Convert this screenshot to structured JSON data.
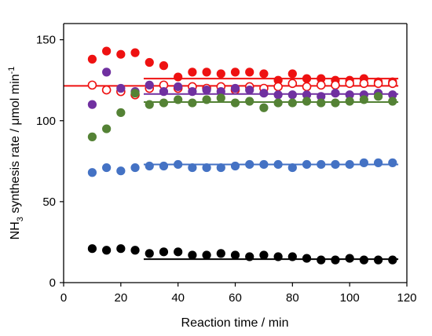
{
  "chart_data": {
    "type": "scatter",
    "xlabel": "Reaction time / min",
    "ylabel_parts": {
      "pre": "NH",
      "sub": "3",
      "mid": " synthesis rate / μmol min",
      "sup": "-1"
    },
    "xlim": [
      0,
      120
    ],
    "ylim": [
      0,
      160
    ],
    "xticks": [
      0,
      20,
      40,
      60,
      80,
      100,
      120
    ],
    "yticks": [
      0,
      50,
      100,
      150
    ],
    "grid": false,
    "legend": "none",
    "series": [
      {
        "color": "#ee1111",
        "marker": "filled",
        "x": [
          10,
          15,
          20,
          25,
          30,
          35,
          40,
          45,
          50,
          55,
          60,
          65,
          70,
          75,
          80,
          85,
          90,
          95,
          100,
          105,
          110,
          115
        ],
        "y": [
          138,
          143,
          141,
          142,
          136,
          134,
          127,
          130,
          130,
          129,
          130,
          130,
          129,
          125,
          129,
          126,
          126,
          125,
          125,
          126,
          124,
          124
        ],
        "fit": {
          "x": [
            28,
            117
          ],
          "y": [
            126,
            126
          ]
        }
      },
      {
        "color": "#ee1111",
        "marker": "open",
        "x": [
          10,
          15,
          20,
          25,
          30,
          35,
          40,
          45,
          50,
          55,
          60,
          65,
          70,
          75,
          80,
          85,
          90,
          95,
          100,
          105,
          110,
          115
        ],
        "y": [
          122,
          119,
          118,
          116,
          120,
          122,
          120,
          121,
          120,
          121,
          119,
          121,
          120,
          121,
          123,
          121,
          122,
          122,
          123,
          123,
          123,
          123
        ],
        "fit": {
          "x": [
            0,
            117
          ],
          "y": [
            121.5,
            121.5
          ]
        }
      },
      {
        "color": "#7030a0",
        "marker": "filled",
        "x": [
          10,
          15,
          20,
          25,
          30,
          35,
          40,
          45,
          50,
          55,
          60,
          65,
          70,
          75,
          80,
          85,
          90,
          95,
          100,
          105,
          110,
          115
        ],
        "y": [
          110,
          130,
          120,
          118,
          122,
          118,
          121,
          118,
          119,
          118,
          120,
          119,
          117,
          116,
          116,
          116,
          115,
          117,
          116,
          116,
          117,
          116
        ],
        "fit": {
          "x": [
            28,
            117
          ],
          "y": [
            116.5,
            116.5
          ]
        }
      },
      {
        "color": "#548235",
        "marker": "filled",
        "x": [
          10,
          15,
          20,
          25,
          30,
          35,
          40,
          45,
          50,
          55,
          60,
          65,
          70,
          75,
          80,
          85,
          90,
          95,
          100,
          105,
          110,
          115
        ],
        "y": [
          90,
          95,
          105,
          117,
          110,
          111,
          113,
          111,
          113,
          114,
          111,
          112,
          108,
          111,
          111,
          112,
          111,
          111,
          112,
          113,
          115,
          112
        ],
        "fit": {
          "x": [
            28,
            117
          ],
          "y": [
            111.5,
            111.5
          ]
        }
      },
      {
        "color": "#4472c4",
        "marker": "filled",
        "x": [
          10,
          15,
          20,
          25,
          30,
          35,
          40,
          45,
          50,
          55,
          60,
          65,
          70,
          75,
          80,
          85,
          90,
          95,
          100,
          105,
          110,
          115
        ],
        "y": [
          68,
          71,
          69,
          71,
          72,
          72,
          73,
          71,
          71,
          71,
          72,
          73,
          73,
          73,
          71,
          73,
          73,
          73,
          73,
          74,
          74,
          74
        ],
        "fit": {
          "x": [
            28,
            117
          ],
          "y": [
            73,
            73
          ]
        }
      },
      {
        "color": "#000000",
        "marker": "filled",
        "x": [
          10,
          15,
          20,
          25,
          30,
          35,
          40,
          45,
          50,
          55,
          60,
          65,
          70,
          75,
          80,
          85,
          90,
          95,
          100,
          105,
          110,
          115
        ],
        "y": [
          21,
          20,
          21,
          20,
          18,
          19,
          19,
          17,
          17,
          18,
          17,
          16,
          17,
          16,
          16,
          15,
          14,
          14,
          15,
          14,
          14,
          14
        ],
        "fit": {
          "x": [
            28,
            117
          ],
          "y": [
            14.5,
            14.5
          ]
        }
      }
    ]
  }
}
